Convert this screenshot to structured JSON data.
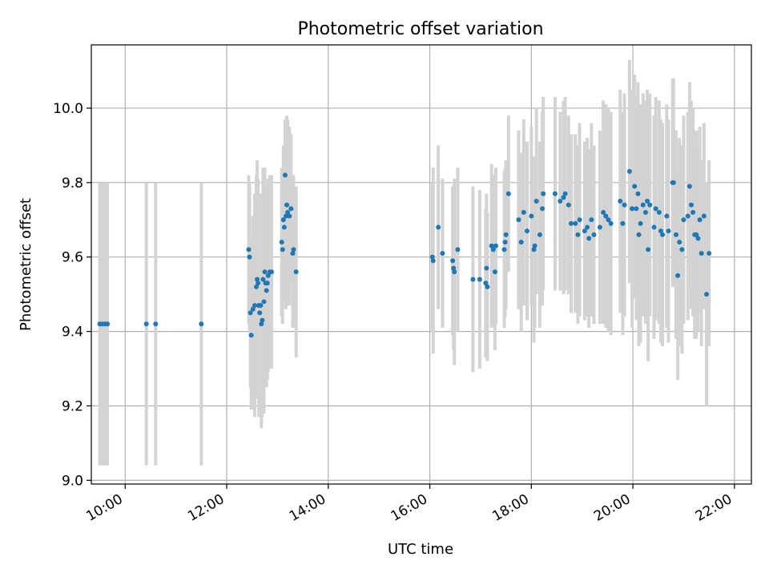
{
  "chart_data": {
    "type": "scatter",
    "title": "Photometric offset variation",
    "xlabel": "UTC time",
    "ylabel": "Photometric offset",
    "x_ticks": [
      "10:00",
      "12:00",
      "14:00",
      "16:00",
      "18:00",
      "20:00",
      "22:00"
    ],
    "y_ticks": [
      "9.0",
      "9.2",
      "9.4",
      "9.6",
      "9.8",
      "10.0"
    ],
    "xlim": [
      "09:20",
      "22:20"
    ],
    "ylim": [
      8.99,
      10.17
    ],
    "grid": true,
    "colors": {
      "point": "#1f77b4",
      "errorbar": "#d3d3d3",
      "grid": "#b0b0b0"
    },
    "series": [
      {
        "points": [
          {
            "x": "09:30",
            "y": 9.42,
            "err": 0.38
          },
          {
            "x": "09:33",
            "y": 9.42,
            "err": 0.38
          },
          {
            "x": "09:36",
            "y": 9.42,
            "err": 0.38
          },
          {
            "x": "09:39",
            "y": 9.42,
            "err": 0.38
          },
          {
            "x": "10:25",
            "y": 9.42,
            "err": 0.38
          },
          {
            "x": "10:36",
            "y": 9.42,
            "err": 0.38
          },
          {
            "x": "11:30",
            "y": 9.42,
            "err": 0.38
          },
          {
            "x": "12:26",
            "y": 9.62,
            "err": 0.2
          },
          {
            "x": "12:27",
            "y": 9.6,
            "err": 0.2
          },
          {
            "x": "12:28",
            "y": 9.45,
            "err": 0.2
          },
          {
            "x": "12:29",
            "y": 9.39,
            "err": 0.2
          },
          {
            "x": "12:31",
            "y": 9.46,
            "err": 0.25
          },
          {
            "x": "12:33",
            "y": 9.47,
            "err": 0.3
          },
          {
            "x": "12:35",
            "y": 9.52,
            "err": 0.3
          },
          {
            "x": "12:36",
            "y": 9.54,
            "err": 0.32
          },
          {
            "x": "12:37",
            "y": 9.53,
            "err": 0.28
          },
          {
            "x": "12:38",
            "y": 9.47,
            "err": 0.3
          },
          {
            "x": "12:39",
            "y": 9.45,
            "err": 0.28
          },
          {
            "x": "12:40",
            "y": 9.47,
            "err": 0.3
          },
          {
            "x": "12:41",
            "y": 9.42,
            "err": 0.28
          },
          {
            "x": "12:42",
            "y": 9.43,
            "err": 0.26
          },
          {
            "x": "12:43",
            "y": 9.54,
            "err": 0.3
          },
          {
            "x": "12:44",
            "y": 9.48,
            "err": 0.3
          },
          {
            "x": "12:45",
            "y": 9.56,
            "err": 0.28
          },
          {
            "x": "12:46",
            "y": 9.53,
            "err": 0.26
          },
          {
            "x": "12:47",
            "y": 9.51,
            "err": 0.26
          },
          {
            "x": "12:48",
            "y": 9.53,
            "err": 0.26
          },
          {
            "x": "12:49",
            "y": 9.55,
            "err": 0.26
          },
          {
            "x": "12:51",
            "y": 9.56,
            "err": 0.26
          },
          {
            "x": "12:53",
            "y": 9.56,
            "err": 0.26
          },
          {
            "x": "13:05",
            "y": 9.64,
            "err": 0.2
          },
          {
            "x": "13:06",
            "y": 9.62,
            "err": 0.2
          },
          {
            "x": "13:07",
            "y": 9.7,
            "err": 0.2
          },
          {
            "x": "13:08",
            "y": 9.68,
            "err": 0.2
          },
          {
            "x": "13:09",
            "y": 9.82,
            "err": 0.15
          },
          {
            "x": "13:10",
            "y": 9.71,
            "err": 0.25
          },
          {
            "x": "13:11",
            "y": 9.74,
            "err": 0.24
          },
          {
            "x": "13:12",
            "y": 9.72,
            "err": 0.25
          },
          {
            "x": "13:14",
            "y": 9.71,
            "err": 0.24
          },
          {
            "x": "13:16",
            "y": 9.73,
            "err": 0.2
          },
          {
            "x": "13:18",
            "y": 9.61,
            "err": 0.2
          },
          {
            "x": "13:19",
            "y": 9.62,
            "err": 0.2
          },
          {
            "x": "13:22",
            "y": 9.56,
            "err": 0.23
          },
          {
            "x": "16:03",
            "y": 9.6,
            "err": 0.2
          },
          {
            "x": "16:04",
            "y": 9.59,
            "err": 0.25
          },
          {
            "x": "16:10",
            "y": 9.68,
            "err": 0.22
          },
          {
            "x": "16:15",
            "y": 9.61,
            "err": 0.2
          },
          {
            "x": "16:27",
            "y": 9.59,
            "err": 0.2
          },
          {
            "x": "16:28",
            "y": 9.57,
            "err": 0.22
          },
          {
            "x": "16:29",
            "y": 9.56,
            "err": 0.25
          },
          {
            "x": "16:33",
            "y": 9.62,
            "err": 0.22
          },
          {
            "x": "16:51",
            "y": 9.54,
            "err": 0.25
          },
          {
            "x": "16:59",
            "y": 9.54,
            "err": 0.24
          },
          {
            "x": "17:06",
            "y": 9.53,
            "err": 0.2
          },
          {
            "x": "17:07",
            "y": 9.57,
            "err": 0.2
          },
          {
            "x": "17:08",
            "y": 9.52,
            "err": 0.2
          },
          {
            "x": "17:13",
            "y": 9.63,
            "err": 0.22
          },
          {
            "x": "17:15",
            "y": 9.62,
            "err": 0.2
          },
          {
            "x": "17:17",
            "y": 9.56,
            "err": 0.21
          },
          {
            "x": "17:18",
            "y": 9.63,
            "err": 0.21
          },
          {
            "x": "17:28",
            "y": 9.62,
            "err": 0.21
          },
          {
            "x": "17:29",
            "y": 9.64,
            "err": 0.2
          },
          {
            "x": "17:30",
            "y": 9.66,
            "err": 0.2
          },
          {
            "x": "17:33",
            "y": 9.77,
            "err": 0.21
          },
          {
            "x": "17:45",
            "y": 9.7,
            "err": 0.24
          },
          {
            "x": "17:48",
            "y": 9.64,
            "err": 0.24
          },
          {
            "x": "17:51",
            "y": 9.72,
            "err": 0.25
          },
          {
            "x": "17:55",
            "y": 9.67,
            "err": 0.24
          },
          {
            "x": "18:00",
            "y": 9.71,
            "err": 0.24
          },
          {
            "x": "18:03",
            "y": 9.62,
            "err": 0.25
          },
          {
            "x": "18:04",
            "y": 9.63,
            "err": 0.22
          },
          {
            "x": "18:06",
            "y": 9.75,
            "err": 0.25
          },
          {
            "x": "18:10",
            "y": 9.66,
            "err": 0.25
          },
          {
            "x": "18:13",
            "y": 9.73,
            "err": 0.26
          },
          {
            "x": "18:14",
            "y": 9.77,
            "err": 0.26
          },
          {
            "x": "18:28",
            "y": 9.77,
            "err": 0.26
          },
          {
            "x": "18:34",
            "y": 9.75,
            "err": 0.24
          },
          {
            "x": "18:38",
            "y": 9.76,
            "err": 0.26
          },
          {
            "x": "18:40",
            "y": 9.77,
            "err": 0.26
          },
          {
            "x": "18:44",
            "y": 9.74,
            "err": 0.24
          },
          {
            "x": "18:47",
            "y": 9.69,
            "err": 0.24
          },
          {
            "x": "18:52",
            "y": 9.69,
            "err": 0.24
          },
          {
            "x": "18:55",
            "y": 9.66,
            "err": 0.24
          },
          {
            "x": "18:57",
            "y": 9.7,
            "err": 0.26
          },
          {
            "x": "19:03",
            "y": 9.67,
            "err": 0.24
          },
          {
            "x": "19:06",
            "y": 9.68,
            "err": 0.24
          },
          {
            "x": "19:08",
            "y": 9.65,
            "err": 0.24
          },
          {
            "x": "19:11",
            "y": 9.7,
            "err": 0.26
          },
          {
            "x": "19:14",
            "y": 9.66,
            "err": 0.24
          },
          {
            "x": "19:21",
            "y": 9.68,
            "err": 0.26
          },
          {
            "x": "19:25",
            "y": 9.72,
            "err": 0.3
          },
          {
            "x": "19:28",
            "y": 9.71,
            "err": 0.3
          },
          {
            "x": "19:31",
            "y": 9.7,
            "err": 0.3
          },
          {
            "x": "19:34",
            "y": 9.69,
            "err": 0.3
          },
          {
            "x": "19:45",
            "y": 9.75,
            "err": 0.3
          },
          {
            "x": "19:48",
            "y": 9.69,
            "err": 0.3
          },
          {
            "x": "19:50",
            "y": 9.74,
            "err": 0.3
          },
          {
            "x": "19:56",
            "y": 9.83,
            "err": 0.3
          },
          {
            "x": "19:59",
            "y": 9.73,
            "err": 0.32
          },
          {
            "x": "20:02",
            "y": 9.79,
            "err": 0.3
          },
          {
            "x": "20:04",
            "y": 9.73,
            "err": 0.3
          },
          {
            "x": "20:06",
            "y": 9.77,
            "err": 0.3
          },
          {
            "x": "20:07",
            "y": 9.66,
            "err": 0.3
          },
          {
            "x": "20:09",
            "y": 9.69,
            "err": 0.32
          },
          {
            "x": "20:12",
            "y": 9.74,
            "err": 0.3
          },
          {
            "x": "20:15",
            "y": 9.72,
            "err": 0.3
          },
          {
            "x": "20:17",
            "y": 9.75,
            "err": 0.3
          },
          {
            "x": "20:18",
            "y": 9.62,
            "err": 0.3
          },
          {
            "x": "20:20",
            "y": 9.74,
            "err": 0.3
          },
          {
            "x": "20:25",
            "y": 9.68,
            "err": 0.3
          },
          {
            "x": "20:27",
            "y": 9.73,
            "err": 0.3
          },
          {
            "x": "20:31",
            "y": 9.72,
            "err": 0.3
          },
          {
            "x": "20:33",
            "y": 9.67,
            "err": 0.3
          },
          {
            "x": "20:35",
            "y": 9.66,
            "err": 0.3
          },
          {
            "x": "20:40",
            "y": 9.71,
            "err": 0.3
          },
          {
            "x": "20:42",
            "y": 9.67,
            "err": 0.3
          },
          {
            "x": "20:47",
            "y": 9.8,
            "err": 0.28
          },
          {
            "x": "20:48",
            "y": 9.8,
            "err": 0.28
          },
          {
            "x": "20:51",
            "y": 9.66,
            "err": 0.28
          },
          {
            "x": "20:53",
            "y": 9.55,
            "err": 0.28
          },
          {
            "x": "20:55",
            "y": 9.64,
            "err": 0.28
          },
          {
            "x": "20:58",
            "y": 9.62,
            "err": 0.28
          },
          {
            "x": "21:00",
            "y": 9.7,
            "err": 0.28
          },
          {
            "x": "21:05",
            "y": 9.71,
            "err": 0.28
          },
          {
            "x": "21:07",
            "y": 9.79,
            "err": 0.28
          },
          {
            "x": "21:09",
            "y": 9.74,
            "err": 0.28
          },
          {
            "x": "21:11",
            "y": 9.72,
            "err": 0.28
          },
          {
            "x": "21:13",
            "y": 9.66,
            "err": 0.28
          },
          {
            "x": "21:15",
            "y": 9.66,
            "err": 0.28
          },
          {
            "x": "21:17",
            "y": 9.65,
            "err": 0.25
          },
          {
            "x": "21:19",
            "y": 9.7,
            "err": 0.25
          },
          {
            "x": "21:21",
            "y": 9.61,
            "err": 0.25
          },
          {
            "x": "21:24",
            "y": 9.71,
            "err": 0.25
          },
          {
            "x": "21:27",
            "y": 9.5,
            "err": 0.3
          },
          {
            "x": "21:30",
            "y": 9.61,
            "err": 0.25
          }
        ]
      }
    ]
  }
}
